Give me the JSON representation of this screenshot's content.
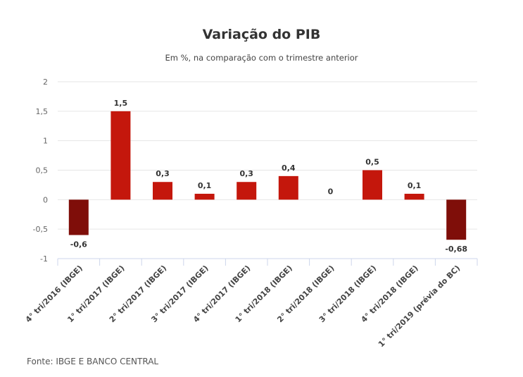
{
  "chart_data": {
    "type": "bar",
    "title": "Variação do PIB",
    "subtitle": "Em %, na comparação com o trimestre anterior",
    "source": "Fonte: IBGE E BANCO CENTRAL",
    "xlabel": "",
    "ylabel": "",
    "ylim": [
      -1,
      2
    ],
    "yticks": [
      2,
      1.5,
      1,
      0.5,
      0,
      -0.5,
      -1
    ],
    "ytick_labels": [
      "2",
      "1,5",
      "1",
      "0,5",
      "0",
      "-0,5",
      "-1"
    ],
    "grid": true,
    "legend": "none",
    "categories": [
      "4° tri/2016 (IBGE)",
      "1° tri/2017 (IBGE)",
      "2° tri/2017 (IBGE)",
      "3° tri/2017 (IBGE)",
      "4° tri/2017 (IBGE)",
      "1° tri/2018 (IBGE)",
      "2° tri/2018 (IBGE)",
      "3° tri/2018 (IBGE)",
      "4° tri/2018 (IBGE)",
      "1° tri/2019 (prévia do BC)"
    ],
    "values": [
      -0.6,
      1.5,
      0.3,
      0.1,
      0.3,
      0.4,
      0,
      0.5,
      0.1,
      -0.68
    ],
    "data_labels": [
      "-0,6",
      "1,5",
      "0,3",
      "0,1",
      "0,3",
      "0,4",
      "0",
      "0,5",
      "0,1",
      "-0,68"
    ],
    "colors": {
      "positive": "#c4170c",
      "negative": "#7f0e09"
    }
  }
}
